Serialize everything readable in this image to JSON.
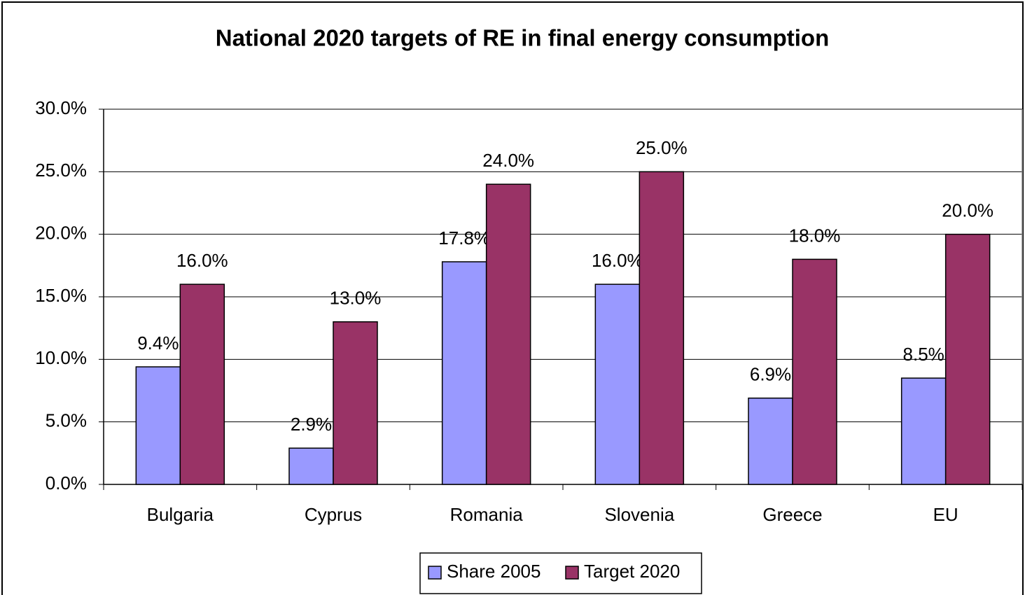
{
  "chart_data": {
    "type": "bar",
    "title": "National 2020 targets of RE in final energy consumption",
    "categories": [
      "Bulgaria",
      "Cyprus",
      "Romania",
      "Slovenia",
      "Greece",
      "EU"
    ],
    "series": [
      {
        "name": "Share 2005",
        "color": "#9999ff",
        "values": [
          9.4,
          2.9,
          17.8,
          16.0,
          6.9,
          8.5
        ],
        "value_labels": [
          "9.4%",
          "2.9%",
          "17.8%",
          "16.0%",
          "6.9%",
          "8.5%"
        ]
      },
      {
        "name": "Target 2020",
        "color": "#993366",
        "values": [
          16.0,
          13.0,
          24.0,
          25.0,
          18.0,
          20.0
        ],
        "value_labels": [
          "16.0%",
          "13.0%",
          "24.0%",
          "25.0%",
          "18.0%",
          "20.0%"
        ]
      }
    ],
    "ylim": [
      0,
      30
    ],
    "yticks": [
      {
        "value": 0,
        "label": "0.0%"
      },
      {
        "value": 5,
        "label": "5.0%"
      },
      {
        "value": 10,
        "label": "10.0%"
      },
      {
        "value": 15,
        "label": "15.0%"
      },
      {
        "value": 20,
        "label": "20.0%"
      },
      {
        "value": 25,
        "label": "25.0%"
      },
      {
        "value": 30,
        "label": "30.0%"
      }
    ],
    "grid": true,
    "legend": "bottom"
  }
}
